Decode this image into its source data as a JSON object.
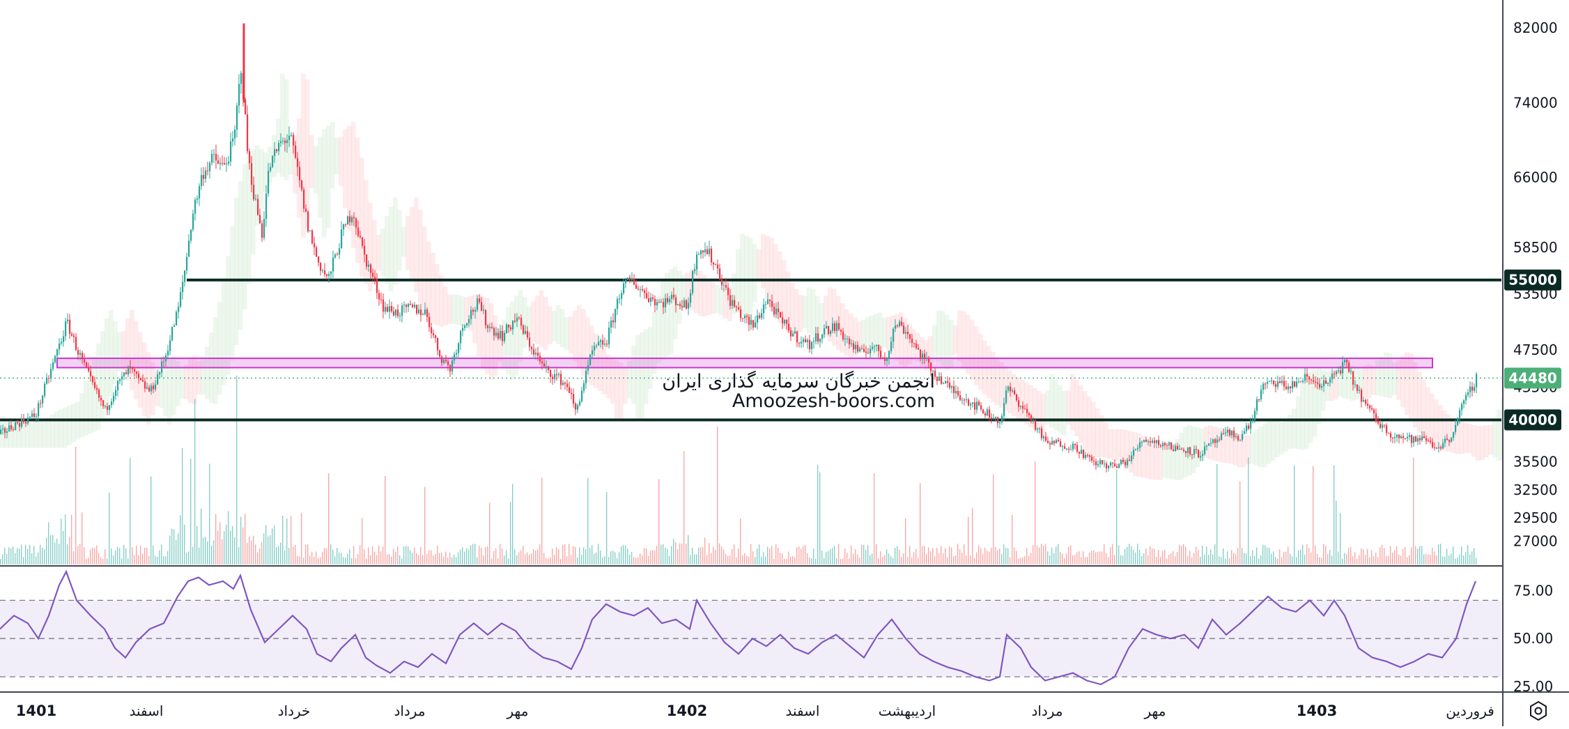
{
  "chart_data": {
    "type": "candlestick",
    "watermark": {
      "line1": "انجمن خبرگان سرمایه گذاری ایران",
      "line2": "Amoozesh-boors.com"
    },
    "price_axis": {
      "ticks": [
        "82000",
        "74000",
        "66000",
        "58500",
        "53500",
        "47500",
        "43500",
        "35500",
        "32500",
        "29500",
        "27000"
      ],
      "tick_values": [
        82000,
        74000,
        66000,
        58500,
        53500,
        47500,
        43500,
        35500,
        32500,
        29500,
        27000
      ],
      "range": [
        24500,
        85000
      ]
    },
    "horizontal_levels": [
      {
        "value": 55000,
        "label": "55000",
        "color": "#0b2a24"
      },
      {
        "value": 40000,
        "label": "40000",
        "color": "#0b2a24"
      }
    ],
    "current_price": {
      "value": 44480,
      "label": "44480",
      "color": "#4caf78"
    },
    "zone": {
      "from": 45600,
      "to": 46600,
      "color": "#cc33cc"
    },
    "x_axis": {
      "labels": [
        {
          "text": "1401",
          "year": true
        },
        {
          "text": "اسفند",
          "year": false
        },
        {
          "text": "خرداد",
          "year": false
        },
        {
          "text": "مرداد",
          "year": false
        },
        {
          "text": "مهر",
          "year": false
        },
        {
          "text": "1402",
          "year": true
        },
        {
          "text": "اسفند",
          "year": false
        },
        {
          "text": "اردیبهشت",
          "year": false
        },
        {
          "text": "مرداد",
          "year": false
        },
        {
          "text": "مهر",
          "year": false
        },
        {
          "text": "1403",
          "year": true
        },
        {
          "text": "فروردین",
          "year": false
        }
      ]
    },
    "price_path": [
      [
        0,
        38500
      ],
      [
        20,
        39500
      ],
      [
        50,
        40500
      ],
      [
        75,
        46000
      ],
      [
        95,
        50500
      ],
      [
        110,
        47500
      ],
      [
        130,
        44000
      ],
      [
        150,
        41000
      ],
      [
        165,
        43500
      ],
      [
        185,
        45500
      ],
      [
        200,
        44000
      ],
      [
        215,
        43000
      ],
      [
        235,
        46500
      ],
      [
        255,
        52000
      ],
      [
        265,
        56500
      ],
      [
        275,
        62000
      ],
      [
        290,
        66500
      ],
      [
        305,
        68000
      ],
      [
        320,
        67000
      ],
      [
        335,
        70000
      ],
      [
        345,
        78000
      ],
      [
        355,
        68000
      ],
      [
        365,
        63500
      ],
      [
        375,
        60000
      ],
      [
        385,
        67000
      ],
      [
        400,
        69500
      ],
      [
        415,
        70500
      ],
      [
        425,
        67000
      ],
      [
        440,
        61000
      ],
      [
        455,
        57000
      ],
      [
        470,
        55000
      ],
      [
        490,
        60000
      ],
      [
        505,
        62500
      ],
      [
        520,
        58000
      ],
      [
        535,
        55000
      ],
      [
        550,
        52000
      ],
      [
        570,
        51500
      ],
      [
        590,
        52000
      ],
      [
        610,
        51500
      ],
      [
        630,
        47000
      ],
      [
        645,
        45500
      ],
      [
        665,
        50500
      ],
      [
        685,
        52500
      ],
      [
        700,
        50000
      ],
      [
        720,
        49000
      ],
      [
        740,
        51000
      ],
      [
        760,
        48000
      ],
      [
        780,
        45500
      ],
      [
        800,
        44500
      ],
      [
        815,
        43500
      ],
      [
        825,
        40800
      ],
      [
        835,
        43500
      ],
      [
        850,
        47500
      ],
      [
        870,
        48500
      ],
      [
        890,
        54000
      ],
      [
        905,
        55000
      ],
      [
        925,
        53500
      ],
      [
        945,
        52500
      ],
      [
        965,
        53000
      ],
      [
        985,
        52000
      ],
      [
        1000,
        58500
      ],
      [
        1015,
        58000
      ],
      [
        1030,
        56000
      ],
      [
        1045,
        53000
      ],
      [
        1065,
        51000
      ],
      [
        1080,
        50000
      ],
      [
        1100,
        53000
      ],
      [
        1120,
        50500
      ],
      [
        1140,
        49000
      ],
      [
        1160,
        48000
      ],
      [
        1180,
        49500
      ],
      [
        1200,
        50000
      ],
      [
        1215,
        48500
      ],
      [
        1235,
        47000
      ],
      [
        1250,
        48000
      ],
      [
        1270,
        46500
      ],
      [
        1285,
        50500
      ],
      [
        1300,
        49500
      ],
      [
        1320,
        47000
      ],
      [
        1340,
        45000
      ],
      [
        1360,
        43500
      ],
      [
        1380,
        42500
      ],
      [
        1400,
        41500
      ],
      [
        1420,
        40500
      ],
      [
        1435,
        39800
      ],
      [
        1445,
        43500
      ],
      [
        1460,
        42000
      ],
      [
        1480,
        40000
      ],
      [
        1500,
        37500
      ],
      [
        1520,
        37500
      ],
      [
        1545,
        37000
      ],
      [
        1565,
        35500
      ],
      [
        1585,
        35200
      ],
      [
        1600,
        35000
      ],
      [
        1620,
        35800
      ],
      [
        1640,
        38000
      ],
      [
        1665,
        37500
      ],
      [
        1685,
        37000
      ],
      [
        1705,
        36800
      ],
      [
        1720,
        36300
      ],
      [
        1740,
        37500
      ],
      [
        1760,
        38500
      ],
      [
        1780,
        38200
      ],
      [
        1795,
        39800
      ],
      [
        1810,
        43500
      ],
      [
        1830,
        44000
      ],
      [
        1850,
        43500
      ],
      [
        1870,
        44500
      ],
      [
        1890,
        44000
      ],
      [
        1905,
        43800
      ],
      [
        1915,
        45000
      ],
      [
        1930,
        46000
      ],
      [
        1945,
        43500
      ],
      [
        1960,
        41500
      ],
      [
        1980,
        39500
      ],
      [
        1995,
        38500
      ],
      [
        2010,
        38200
      ],
      [
        2030,
        37800
      ],
      [
        2045,
        38000
      ],
      [
        2060,
        37000
      ],
      [
        2080,
        38000
      ],
      [
        2095,
        41000
      ],
      [
        2105,
        42500
      ],
      [
        2118,
        44480
      ]
    ],
    "rsi": {
      "ticks": [
        "75.00",
        "50.00",
        "25.00"
      ],
      "tick_values": [
        75,
        50,
        25
      ],
      "band": [
        30,
        70
      ],
      "range": [
        22,
        88
      ],
      "color": "#7e57c2",
      "series": [
        [
          0,
          55
        ],
        [
          20,
          62
        ],
        [
          40,
          58
        ],
        [
          55,
          50
        ],
        [
          70,
          62
        ],
        [
          85,
          78
        ],
        [
          95,
          85
        ],
        [
          110,
          70
        ],
        [
          130,
          62
        ],
        [
          150,
          55
        ],
        [
          165,
          45
        ],
        [
          180,
          40
        ],
        [
          195,
          48
        ],
        [
          215,
          55
        ],
        [
          235,
          58
        ],
        [
          255,
          72
        ],
        [
          270,
          80
        ],
        [
          285,
          82
        ],
        [
          300,
          78
        ],
        [
          320,
          80
        ],
        [
          335,
          76
        ],
        [
          345,
          83
        ],
        [
          360,
          65
        ],
        [
          380,
          48
        ],
        [
          400,
          55
        ],
        [
          420,
          62
        ],
        [
          440,
          55
        ],
        [
          455,
          42
        ],
        [
          475,
          38
        ],
        [
          490,
          45
        ],
        [
          510,
          52
        ],
        [
          525,
          40
        ],
        [
          540,
          36
        ],
        [
          560,
          32
        ],
        [
          580,
          38
        ],
        [
          600,
          35
        ],
        [
          620,
          42
        ],
        [
          640,
          37
        ],
        [
          660,
          52
        ],
        [
          680,
          58
        ],
        [
          700,
          52
        ],
        [
          720,
          58
        ],
        [
          740,
          54
        ],
        [
          760,
          45
        ],
        [
          780,
          40
        ],
        [
          800,
          38
        ],
        [
          820,
          34
        ],
        [
          835,
          45
        ],
        [
          850,
          60
        ],
        [
          870,
          68
        ],
        [
          890,
          64
        ],
        [
          910,
          62
        ],
        [
          930,
          66
        ],
        [
          950,
          58
        ],
        [
          970,
          60
        ],
        [
          990,
          55
        ],
        [
          1000,
          70
        ],
        [
          1020,
          58
        ],
        [
          1040,
          48
        ],
        [
          1060,
          42
        ],
        [
          1080,
          50
        ],
        [
          1100,
          46
        ],
        [
          1120,
          52
        ],
        [
          1140,
          45
        ],
        [
          1160,
          42
        ],
        [
          1180,
          48
        ],
        [
          1200,
          52
        ],
        [
          1220,
          46
        ],
        [
          1240,
          40
        ],
        [
          1260,
          52
        ],
        [
          1280,
          60
        ],
        [
          1300,
          50
        ],
        [
          1320,
          42
        ],
        [
          1340,
          38
        ],
        [
          1360,
          35
        ],
        [
          1380,
          33
        ],
        [
          1400,
          30
        ],
        [
          1420,
          28
        ],
        [
          1435,
          30
        ],
        [
          1445,
          52
        ],
        [
          1465,
          45
        ],
        [
          1480,
          35
        ],
        [
          1500,
          28
        ],
        [
          1520,
          30
        ],
        [
          1540,
          32
        ],
        [
          1560,
          28
        ],
        [
          1580,
          26
        ],
        [
          1600,
          30
        ],
        [
          1620,
          45
        ],
        [
          1640,
          55
        ],
        [
          1660,
          52
        ],
        [
          1680,
          50
        ],
        [
          1700,
          52
        ],
        [
          1720,
          45
        ],
        [
          1740,
          60
        ],
        [
          1760,
          52
        ],
        [
          1780,
          58
        ],
        [
          1800,
          65
        ],
        [
          1820,
          72
        ],
        [
          1840,
          66
        ],
        [
          1860,
          64
        ],
        [
          1880,
          70
        ],
        [
          1900,
          62
        ],
        [
          1915,
          70
        ],
        [
          1930,
          62
        ],
        [
          1950,
          45
        ],
        [
          1970,
          40
        ],
        [
          1990,
          38
        ],
        [
          2010,
          35
        ],
        [
          2030,
          38
        ],
        [
          2050,
          42
        ],
        [
          2070,
          40
        ],
        [
          2090,
          50
        ],
        [
          2105,
          68
        ],
        [
          2118,
          80
        ]
      ]
    }
  }
}
